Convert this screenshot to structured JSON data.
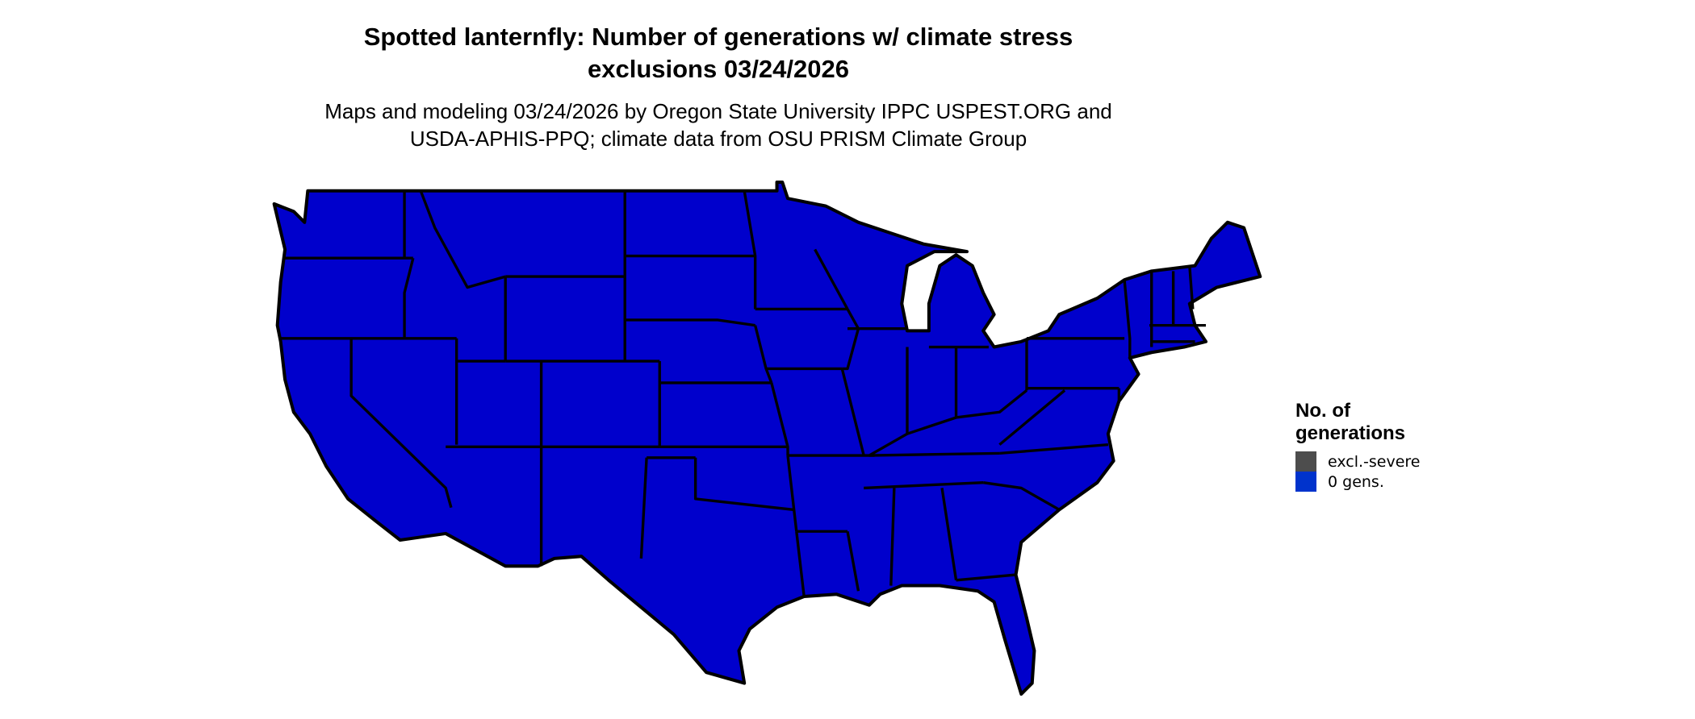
{
  "title": {
    "line1": "Spotted lanternfly: Number of generations w/ climate stress",
    "line2": "exclusions 03/24/2026"
  },
  "subtitle": {
    "line1": "Maps and modeling 03/24/2026 by Oregon State University IPPC USPEST.ORG and",
    "line2": "USDA-APHIS-PPQ; climate data from OSU PRISM Climate Group"
  },
  "map": {
    "region": "Contiguous United States",
    "fill_color": "#0000CC",
    "border_color": "#000000",
    "category_shown": "0 gens."
  },
  "legend": {
    "title_line1": "No. of",
    "title_line2": "generations",
    "items": [
      {
        "label": "excl.-severe",
        "color": "#4D4D4D"
      },
      {
        "label": "0 gens.",
        "color": "#0033CC"
      }
    ]
  }
}
